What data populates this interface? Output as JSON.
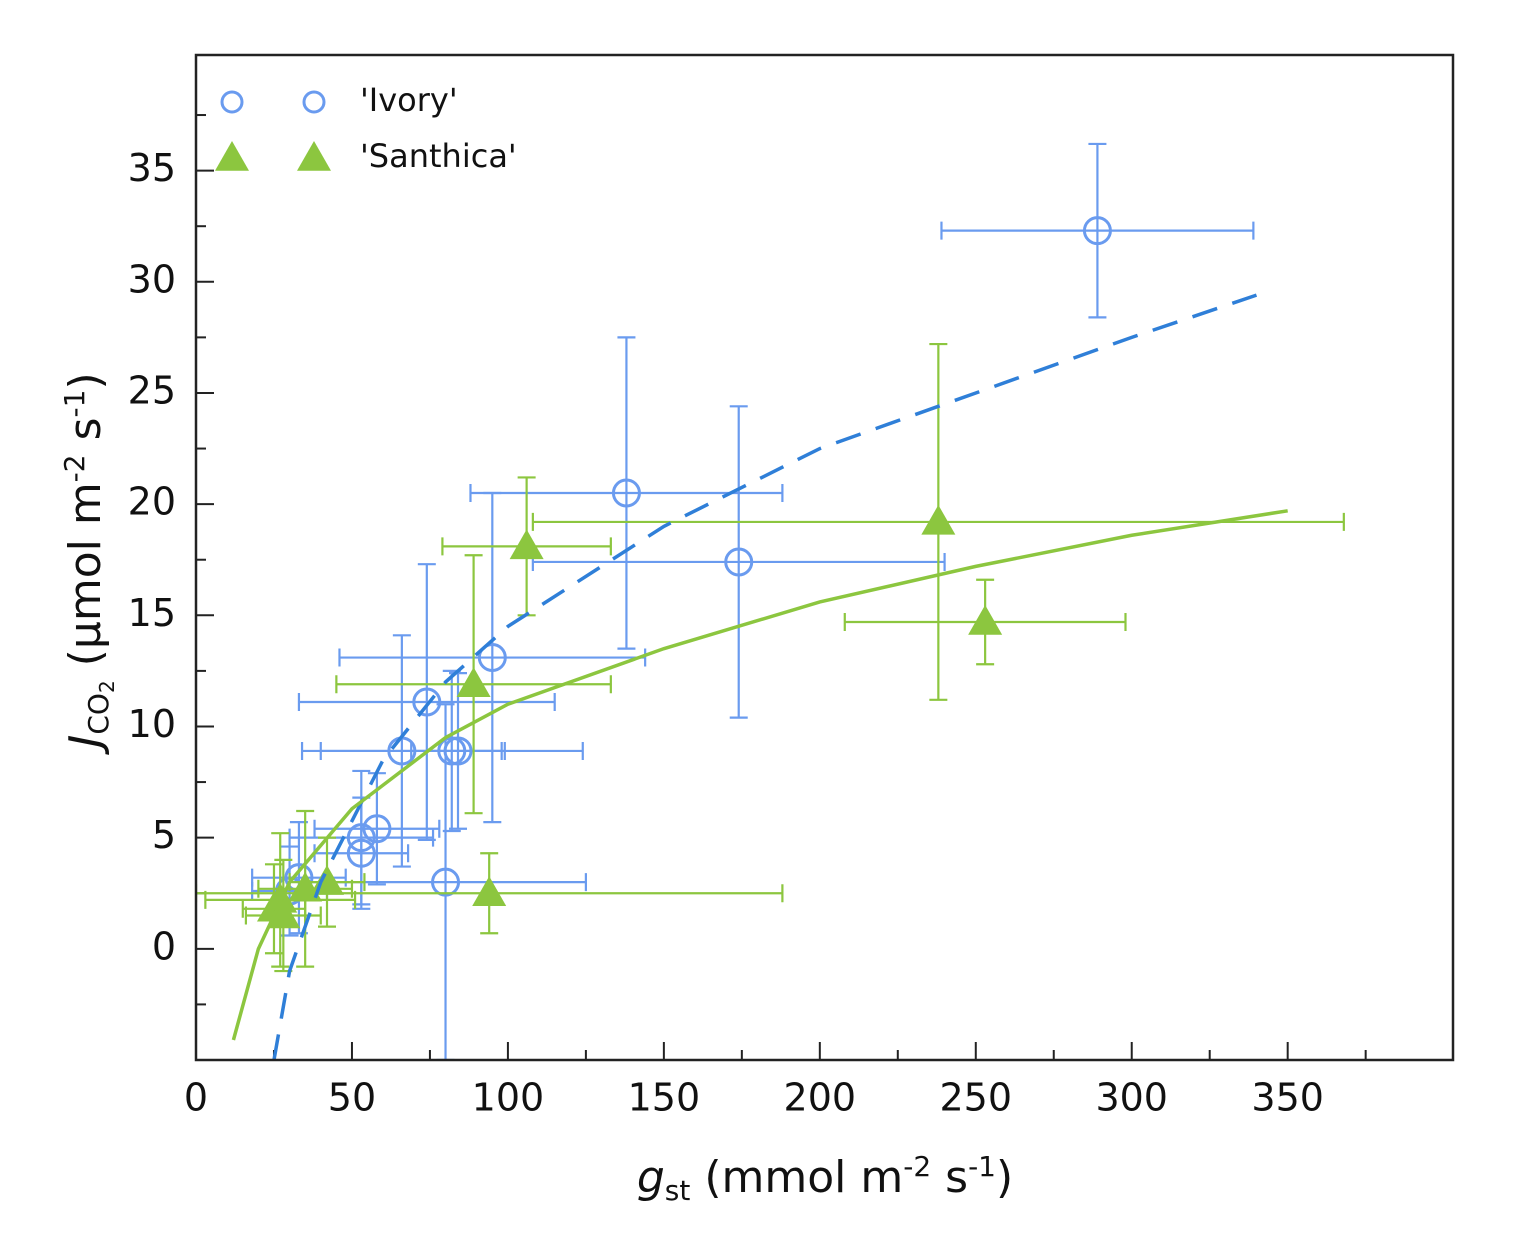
{
  "chart_data": {
    "type": "scatter",
    "xlabel": [
      {
        "text": "g",
        "style": "italic"
      },
      {
        "text": "st",
        "style": "sub"
      },
      {
        "text": " (mmol m",
        "style": "normal"
      },
      {
        "text": "-2",
        "style": "sup"
      },
      {
        "text": " s",
        "style": "normal"
      },
      {
        "text": "-1",
        "style": "sup"
      },
      {
        "text": ")",
        "style": "normal"
      }
    ],
    "ylabel": [
      {
        "text": "J",
        "style": "italic"
      },
      {
        "text": "CO",
        "style": "sub"
      },
      {
        "text": "2",
        "style": "subsub"
      },
      {
        "text": " (µmol m",
        "style": "normal"
      },
      {
        "text": "-2",
        "style": "sup"
      },
      {
        "text": " s",
        "style": "normal"
      },
      {
        "text": "-1",
        "style": "sup"
      },
      {
        "text": ")",
        "style": "normal"
      }
    ],
    "xlim": [
      0,
      403
    ],
    "ylim": [
      -5,
      40.2
    ],
    "xticks": [
      0,
      50,
      100,
      150,
      200,
      250,
      300,
      350
    ],
    "yticks": [
      0,
      5,
      10,
      15,
      20,
      25,
      30,
      35
    ],
    "xminorticks": [
      25,
      75,
      125,
      175,
      225,
      275,
      325,
      375
    ],
    "yminorticks": [
      -2.5,
      2.5,
      7.5,
      12.5,
      17.5,
      22.5,
      27.5,
      32.5,
      37.5
    ],
    "legend": "upper left",
    "series": [
      {
        "name": "'Ivory'",
        "color": "#6a9bef",
        "marker": "circle",
        "x": [
          289,
          138,
          174,
          95,
          74,
          66,
          82,
          84,
          58,
          53,
          53,
          80,
          33,
          30
        ],
        "y": [
          32.3,
          20.5,
          17.4,
          13.1,
          11.1,
          8.9,
          8.9,
          8.9,
          5.4,
          5.0,
          4.3,
          3.0,
          3.2,
          2.6
        ],
        "xerr": [
          50,
          50,
          66,
          49,
          41,
          32,
          42,
          15,
          20,
          23,
          15,
          45,
          15,
          12
        ],
        "yerr": [
          3.9,
          7,
          7,
          7.4,
          6.2,
          5.2,
          3.6,
          3.5,
          2.5,
          3,
          2.5,
          8,
          2.5,
          2
        ]
      },
      {
        "name": "'Santhica'",
        "color": "#8cc63f",
        "marker": "triangle",
        "x": [
          238,
          253,
          106,
          89,
          94,
          27,
          28,
          35,
          25,
          42
        ],
        "y": [
          19.2,
          14.7,
          18.1,
          11.9,
          2.5,
          2.2,
          1.5,
          2.7,
          1.8,
          3.0
        ],
        "xerr": [
          130,
          45,
          27,
          44,
          94,
          24,
          12,
          15,
          10,
          12
        ],
        "yerr": [
          8,
          1.9,
          3.1,
          5.8,
          1.8,
          3,
          2.5,
          3.5,
          2,
          2
        ]
      }
    ],
    "fits": [
      {
        "color": "#2f7fd8",
        "dashed": true,
        "x": [
          25,
          30,
          40,
          60,
          80,
          100,
          150,
          200,
          250,
          300,
          340
        ],
        "y": [
          -5,
          -1,
          3,
          8.5,
          12,
          14.5,
          19,
          22.5,
          25,
          27.5,
          29.4
        ]
      },
      {
        "color": "#8cc63f",
        "dashed": false,
        "x": [
          12,
          20,
          30,
          50,
          80,
          100,
          150,
          200,
          250,
          300,
          350
        ],
        "y": [
          -4.1,
          0,
          3,
          6.3,
          9.5,
          11,
          13.5,
          15.6,
          17.2,
          18.6,
          19.7
        ]
      }
    ]
  }
}
